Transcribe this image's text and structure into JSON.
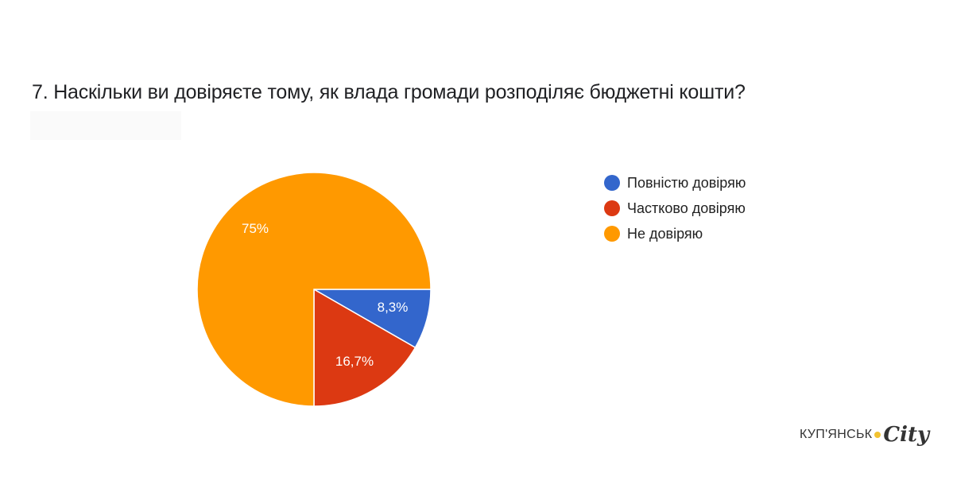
{
  "chart_data": {
    "type": "pie",
    "title": "7.  Наскільки ви довіряєте тому, як влада громади розподіляє бюджетні кошти?",
    "categories": [
      "Повністю довіряю",
      "Частково довіряю",
      "Не довіряю"
    ],
    "values": [
      8.3,
      16.7,
      75
    ],
    "labels": [
      "8,3%",
      "16,7%",
      "75%"
    ],
    "colors": [
      "#3366cc",
      "#dc3912",
      "#ff9900"
    ],
    "legend_position": "right"
  },
  "legend": [
    {
      "label": "Повністю довіряю",
      "color": "#3366cc"
    },
    {
      "label": "Частково довіряю",
      "color": "#dc3912"
    },
    {
      "label": "Не довіряю",
      "color": "#ff9900"
    }
  ],
  "logo": {
    "text": "КУП'ЯНСЬК",
    "city": "City"
  }
}
